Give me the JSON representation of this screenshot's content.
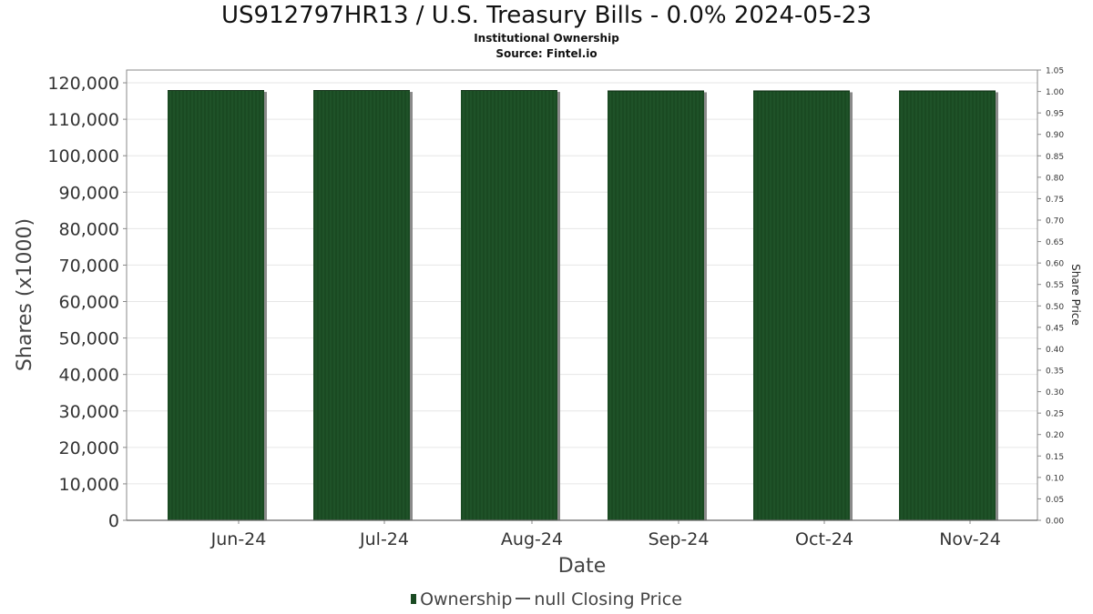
{
  "header": {
    "title": "US912797HR13 / U.S. Treasury Bills - 0.0% 2024-05-23",
    "subtitle": "Institutional Ownership",
    "source": "Source: Fintel.io"
  },
  "legend": {
    "ownership_label": "Ownership",
    "price_label": "null Closing Price"
  },
  "colors": {
    "bar": "#1a4a22",
    "bar_stripe": "#2c6a36",
    "bar_shadow": "#8a8a8a",
    "grid": "#e6e6e6",
    "axis": "#888888"
  },
  "chart_data": {
    "type": "bar",
    "categories": [
      "Jun-24",
      "Jul-24",
      "Aug-24",
      "Sep-24",
      "Oct-24",
      "Nov-24"
    ],
    "series": [
      {
        "name": "Ownership",
        "values": [
          118000,
          118000,
          118000,
          117900,
          117900,
          117900
        ]
      }
    ],
    "xlabel": "Date",
    "ylabel": "Shares (x1000)",
    "y2label": "Share Price",
    "ylim": [
      0,
      120000
    ],
    "y_ticks": [
      0,
      10000,
      20000,
      30000,
      40000,
      50000,
      60000,
      70000,
      80000,
      90000,
      100000,
      110000,
      120000
    ],
    "y_tick_labels": [
      "0",
      "10,000",
      "20,000",
      "30,000",
      "40,000",
      "50,000",
      "60,000",
      "70,000",
      "80,000",
      "90,000",
      "100,000",
      "110,000",
      "120,000"
    ],
    "y2lim": [
      0,
      1.05
    ],
    "y2_ticks": [
      0,
      0.05,
      0.1,
      0.15,
      0.2,
      0.25,
      0.3,
      0.35,
      0.4,
      0.45,
      0.5,
      0.55,
      0.6,
      0.65,
      0.7,
      0.75,
      0.8,
      0.85,
      0.9,
      0.95,
      1.0,
      1.05
    ],
    "y2_tick_labels": [
      "0.00",
      "0.05",
      "0.10",
      "0.15",
      "0.20",
      "0.25",
      "0.30",
      "0.35",
      "0.40",
      "0.45",
      "0.50",
      "0.55",
      "0.60",
      "0.65",
      "0.70",
      "0.75",
      "0.80",
      "0.85",
      "0.90",
      "0.95",
      "1.00",
      "1.05"
    ],
    "grid": true,
    "legend_position": "bottom-center"
  }
}
